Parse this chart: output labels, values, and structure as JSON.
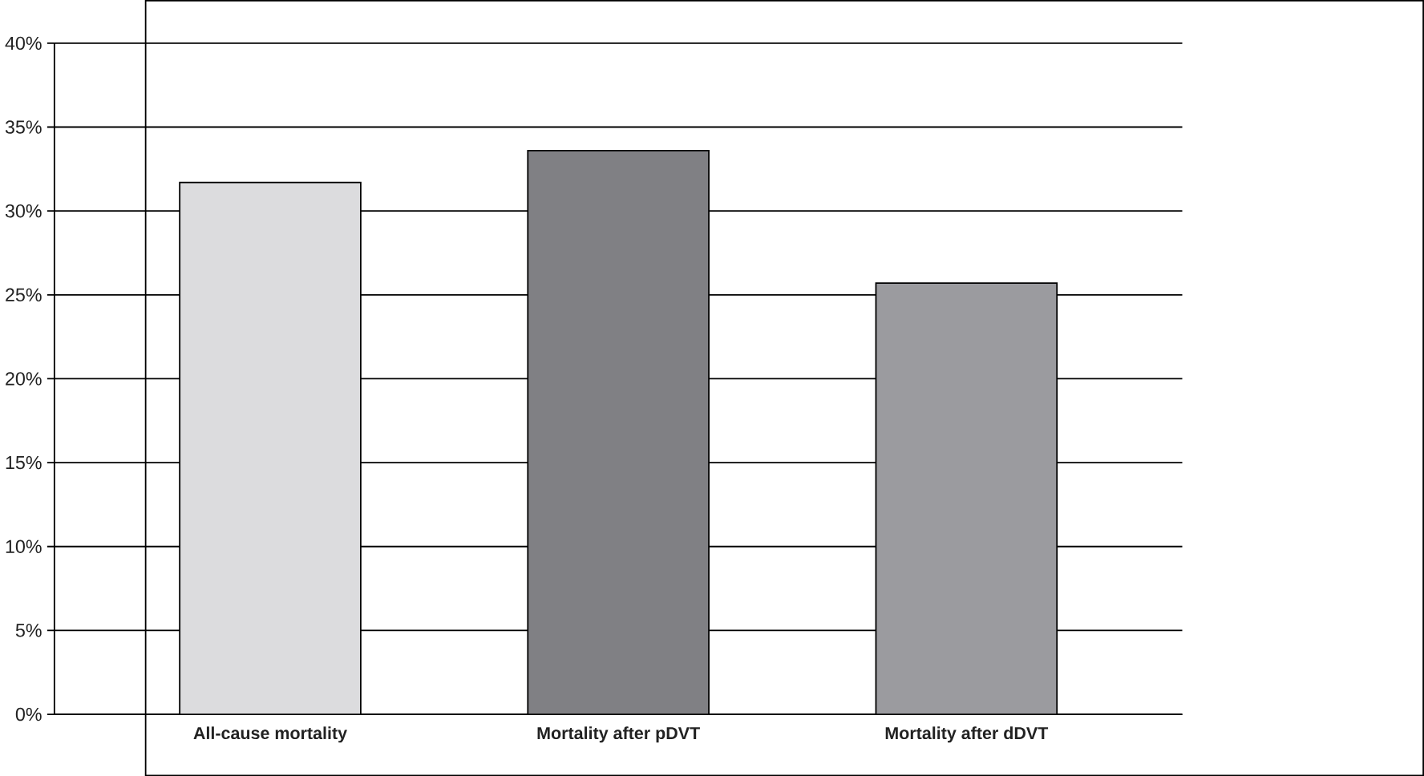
{
  "chart_data": {
    "type": "bar",
    "categories": [
      "All-cause mortality",
      "Mortality after pDVT",
      "Mortality after dDVT"
    ],
    "values": [
      31.7,
      33.6,
      25.7
    ],
    "colors": [
      "#dcdcde",
      "#808084",
      "#9b9b9f"
    ],
    "ylim": [
      0,
      40
    ],
    "yticks": [
      {
        "value": 0,
        "label": "0%"
      },
      {
        "value": 5,
        "label": "5%"
      },
      {
        "value": 10,
        "label": "10%"
      },
      {
        "value": 15,
        "label": "15%"
      },
      {
        "value": 20,
        "label": "20%"
      },
      {
        "value": 25,
        "label": "25%"
      },
      {
        "value": 30,
        "label": "30%"
      },
      {
        "value": 35,
        "label": "35%"
      },
      {
        "value": 40,
        "label": "40%"
      }
    ],
    "grid": "y"
  }
}
